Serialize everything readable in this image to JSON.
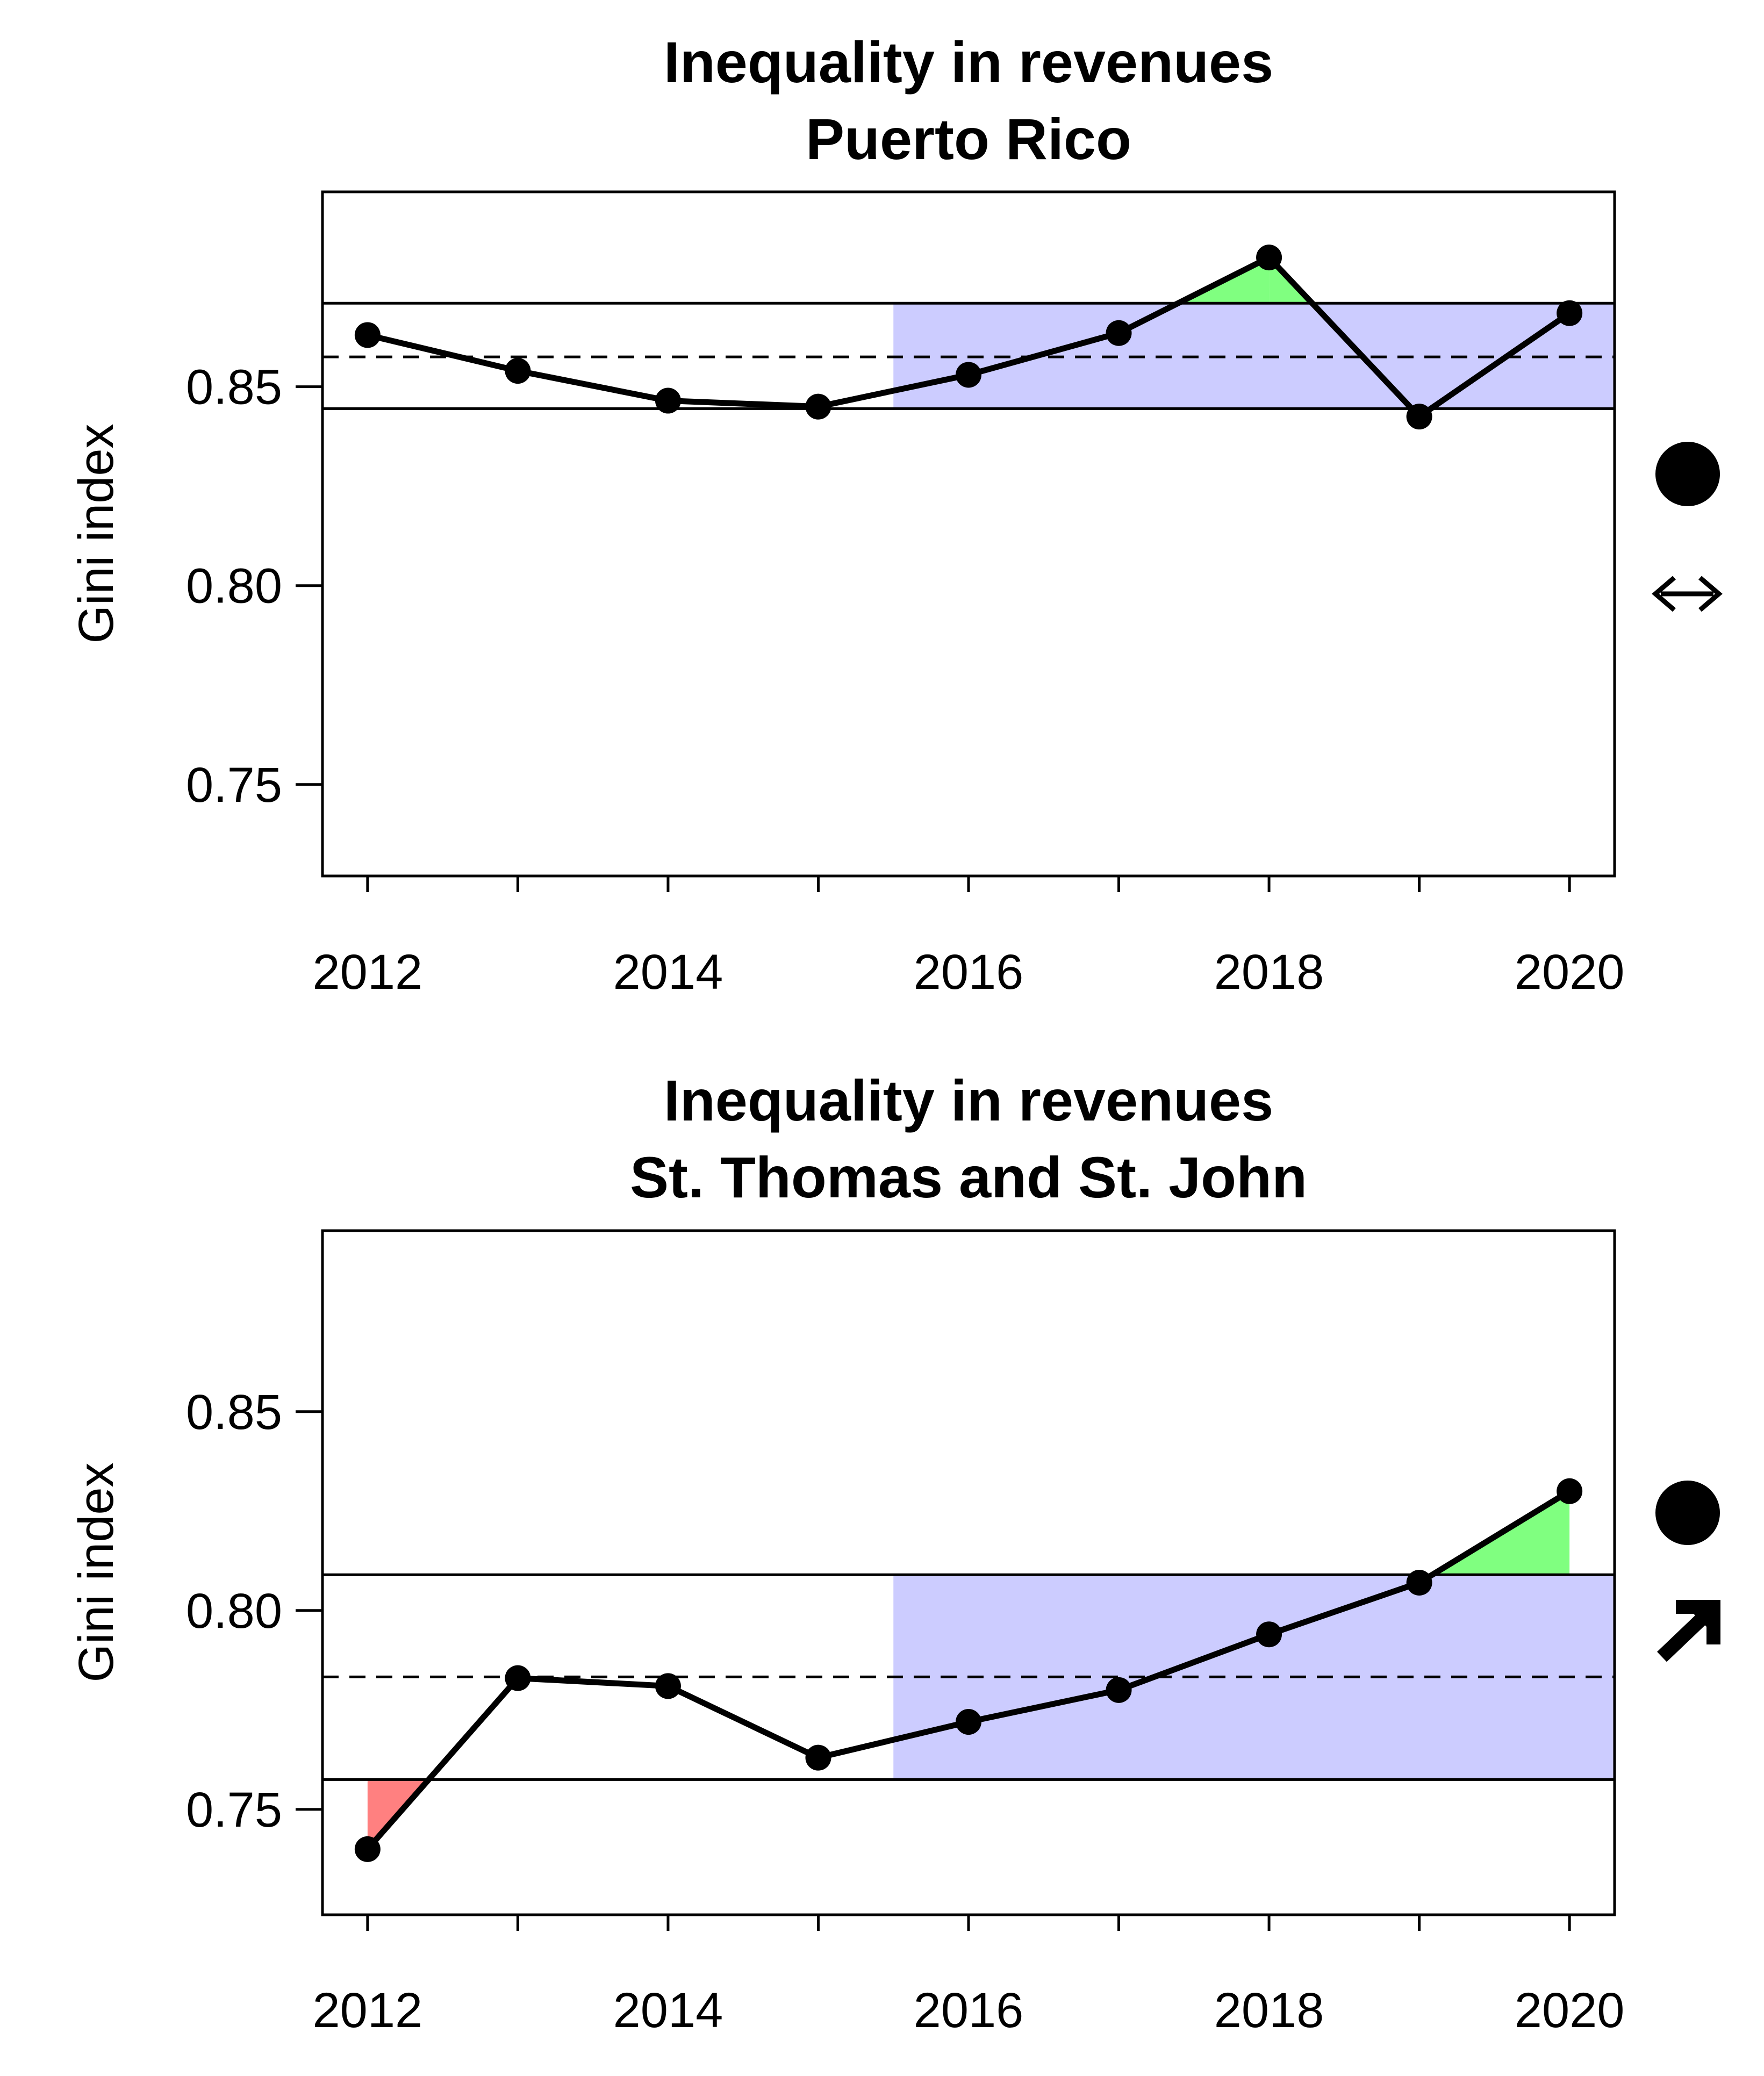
{
  "colors": {
    "band": "#ccccff",
    "above": "#80ff80",
    "below": "#ff8080",
    "line": "#000000"
  },
  "chart_data": [
    {
      "type": "line",
      "title": "Inequality in revenues",
      "subtitle": "Puerto Rico",
      "xlabel": "",
      "ylabel": "Gini index",
      "x": [
        2012,
        2013,
        2014,
        2015,
        2016,
        2017,
        2018,
        2019,
        2020
      ],
      "values": [
        0.863,
        0.854,
        0.8465,
        0.845,
        0.853,
        0.8635,
        0.8825,
        0.8425,
        0.8685
      ],
      "xlim": [
        2011.7,
        2020.3
      ],
      "ylim": [
        0.727,
        0.899
      ],
      "xticks": [
        2012,
        2013,
        2014,
        2015,
        2016,
        2017,
        2018,
        2019,
        2020
      ],
      "xtick_labels": [
        "2012",
        "",
        "2014",
        "",
        "2016",
        "",
        "2018",
        "",
        "2020"
      ],
      "yticks": [
        0.75,
        0.8,
        0.85
      ],
      "ytick_labels": [
        "0.75",
        "0.80",
        "0.85"
      ],
      "reference_mean": 0.8575,
      "band_lower": 0.8445,
      "band_upper": 0.871,
      "band_start_x": 2015.5,
      "grid": false,
      "trend_icon": "left-right-arrow-icon",
      "status_icon": "filled-circle-icon"
    },
    {
      "type": "line",
      "title": "Inequality in revenues",
      "subtitle": "St. Thomas and St. John",
      "xlabel": "",
      "ylabel": "Gini index",
      "x": [
        2012,
        2013,
        2014,
        2015,
        2016,
        2017,
        2018,
        2019,
        2020
      ],
      "values": [
        0.74,
        0.783,
        0.781,
        0.763,
        0.772,
        0.78,
        0.794,
        0.807,
        0.83
      ],
      "xlim": [
        2011.7,
        2020.3
      ],
      "ylim": [
        0.7235,
        0.8955
      ],
      "xticks": [
        2012,
        2013,
        2014,
        2015,
        2016,
        2017,
        2018,
        2019,
        2020
      ],
      "xtick_labels": [
        "2012",
        "",
        "2014",
        "",
        "2016",
        "",
        "2018",
        "",
        "2020"
      ],
      "yticks": [
        0.75,
        0.8,
        0.85
      ],
      "ytick_labels": [
        "0.75",
        "0.80",
        "0.85"
      ],
      "reference_mean": 0.7833,
      "band_lower": 0.7575,
      "band_upper": 0.809,
      "band_start_x": 2015.5,
      "grid": false,
      "trend_icon": "up-right-arrow-icon",
      "status_icon": "filled-circle-icon"
    }
  ]
}
